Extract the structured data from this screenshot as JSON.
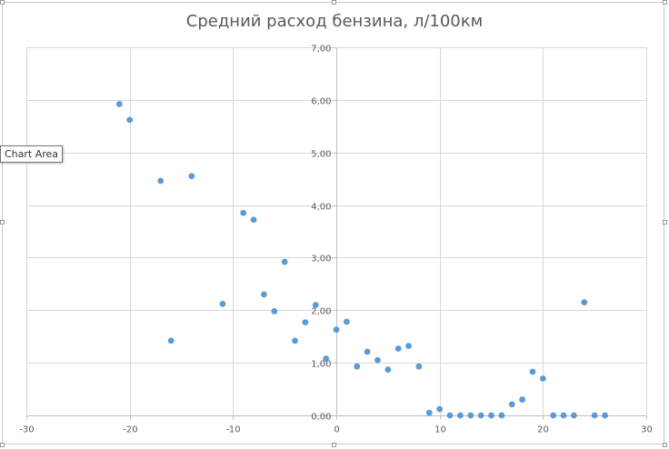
{
  "chart": {
    "title": "Средний расход бензина, л/100км"
  },
  "tooltip": {
    "label": "Chart Area"
  },
  "colors": {
    "marker": "#5b9bd5",
    "gridline": "#d9d9d9",
    "axis": "#bfbfbf",
    "text": "#595959"
  },
  "chart_data": {
    "type": "scatter",
    "title": "Средний расход бензина, л/100км",
    "xlabel": "",
    "ylabel": "",
    "xlim": [
      -30,
      30
    ],
    "ylim": [
      0,
      7
    ],
    "x_ticks": [
      -30,
      -20,
      -10,
      0,
      10,
      20,
      30
    ],
    "y_ticks": [
      0,
      1,
      2,
      3,
      4,
      5,
      6,
      7
    ],
    "x_tick_labels": [
      "-30",
      "-20",
      "-10",
      "0",
      "10",
      "20",
      "30"
    ],
    "y_tick_labels": [
      "0,00",
      "1,00",
      "2,00",
      "3,00",
      "4,00",
      "5,00",
      "6,00",
      "7,00"
    ],
    "grid": true,
    "legend": "none",
    "series": [
      {
        "x": [
          -21,
          -20,
          -17,
          -16,
          -14,
          -11,
          -9,
          -8,
          -7,
          -6,
          -5,
          -4,
          -3,
          -2,
          -1,
          0,
          1,
          2,
          3,
          4,
          5,
          6,
          7,
          8,
          9,
          10,
          11,
          12,
          13,
          14,
          15,
          16,
          17,
          18,
          19,
          20,
          21,
          22,
          23,
          24,
          25,
          26
        ],
        "y": [
          5.92,
          5.62,
          4.46,
          1.42,
          4.55,
          2.12,
          3.85,
          3.72,
          2.3,
          1.98,
          2.92,
          1.42,
          1.77,
          2.1,
          1.08,
          1.63,
          1.78,
          0.93,
          1.21,
          1.05,
          0.87,
          1.27,
          1.32,
          0.93,
          0.05,
          0.12,
          0.0,
          0.0,
          0.0,
          0.0,
          0.0,
          0.0,
          0.21,
          0.3,
          0.83,
          0.7,
          0.0,
          0.0,
          0.0,
          2.15,
          0.0,
          0.0
        ]
      }
    ]
  }
}
